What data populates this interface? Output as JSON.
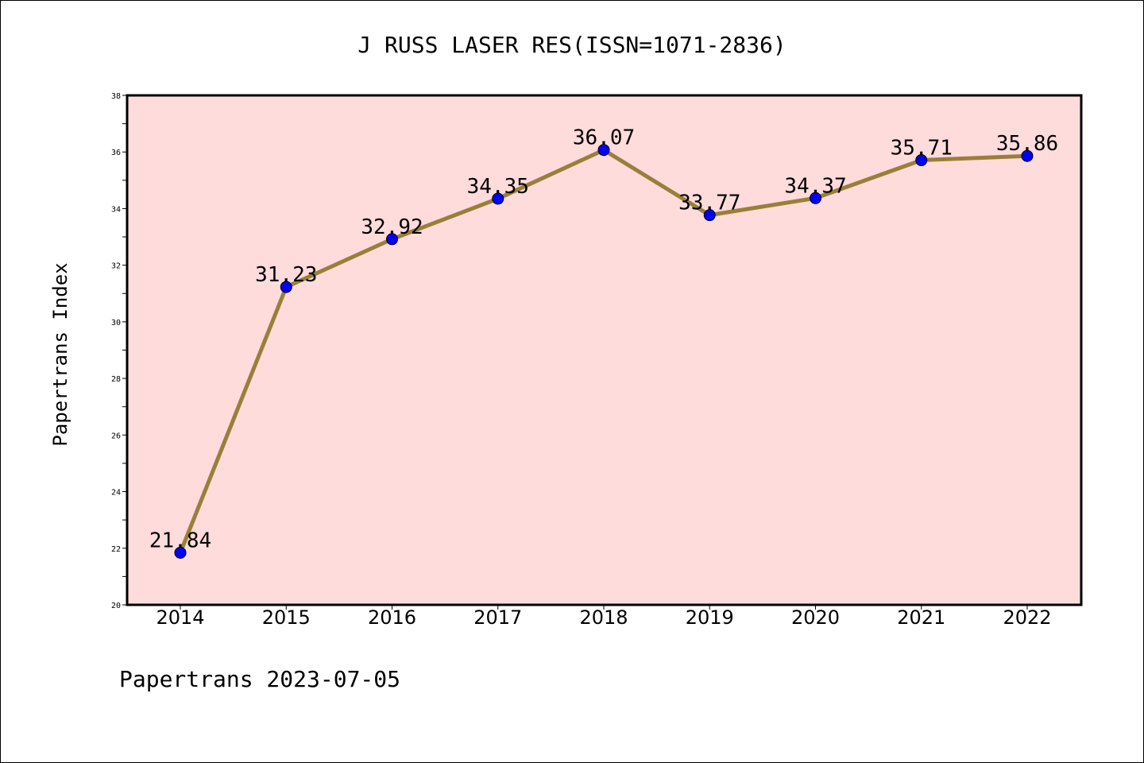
{
  "chart_data": {
    "type": "line",
    "title": "J RUSS LASER RES(ISSN=1071-2836)",
    "xlabel": "",
    "ylabel": "Papertrans Index",
    "categories": [
      "2014",
      "2015",
      "2016",
      "2017",
      "2018",
      "2019",
      "2020",
      "2021",
      "2022"
    ],
    "series": [
      {
        "values": [
          21.84,
          31.23,
          32.92,
          34.35,
          36.07,
          33.77,
          34.37,
          35.71,
          35.86
        ],
        "labels": [
          "21.84",
          "31.23",
          "32.92",
          "34.35",
          "36.07",
          "33.77",
          "34.37",
          "35.71",
          "35.86"
        ]
      }
    ],
    "ylim": [
      20,
      38
    ],
    "yticks": [
      20,
      22,
      24,
      26,
      28,
      30,
      32,
      34,
      36,
      38
    ],
    "grid": false,
    "colors": {
      "plot_background": "#fddcdb",
      "line": "#9a7f3a",
      "marker": "#0000ff"
    }
  },
  "footer": "Papertrans 2023-07-05"
}
